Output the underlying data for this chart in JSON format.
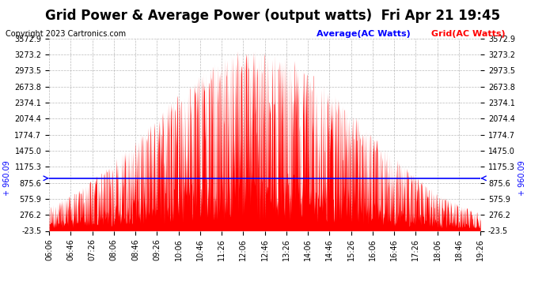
{
  "title": "Grid Power & Average Power (output watts)  Fri Apr 21 19:45",
  "copyright": "Copyright 2023 Cartronics.com",
  "legend_avg": "Average(AC Watts)",
  "legend_grid": "Grid(AC Watts)",
  "avg_value": 960.09,
  "y_min": -23.5,
  "y_max": 3572.9,
  "y_ticks": [
    3572.9,
    3273.2,
    2973.5,
    2673.8,
    2374.1,
    2074.4,
    1774.7,
    1475.0,
    1175.3,
    875.6,
    575.9,
    276.2,
    -23.5
  ],
  "x_start_hour": 6,
  "x_start_min": 6,
  "x_end_hour": 19,
  "x_end_min": 26,
  "x_tick_interval_min": 40,
  "background_color": "#ffffff",
  "plot_bg_color": "#ffffff",
  "grid_color": "#aaaaaa",
  "area_color": "#ff0000",
  "avg_line_color": "#0000ff",
  "title_color": "#000000",
  "copyright_color": "#000000",
  "legend_avg_color": "#0000ff",
  "legend_grid_color": "#ff0000",
  "title_fontsize": 12,
  "copyright_fontsize": 7,
  "tick_fontsize": 7,
  "avg_label_fontsize": 7
}
